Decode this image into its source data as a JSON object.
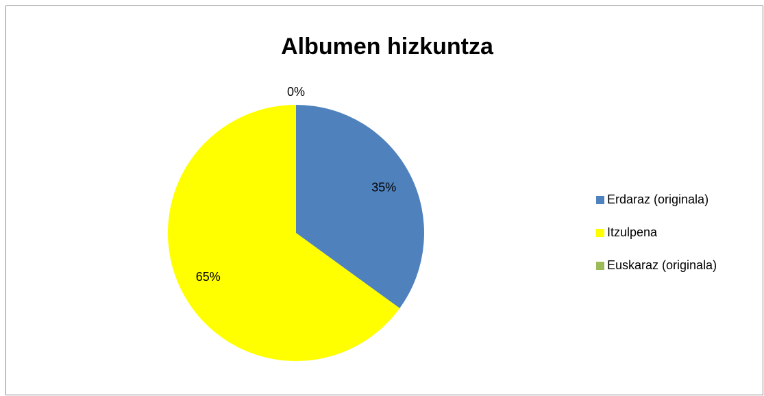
{
  "chart_data": {
    "type": "pie",
    "title": "Albumen hizkuntza",
    "categories": [
      "Erdaraz (originala)",
      "Itzulpena",
      "Euskaraz (originala)"
    ],
    "values": [
      35,
      65,
      0
    ],
    "value_labels": [
      "35%",
      "65%",
      "0%"
    ],
    "colors": [
      "#4f81bd",
      "#ffff00",
      "#9bbb59"
    ],
    "legend": "right"
  }
}
